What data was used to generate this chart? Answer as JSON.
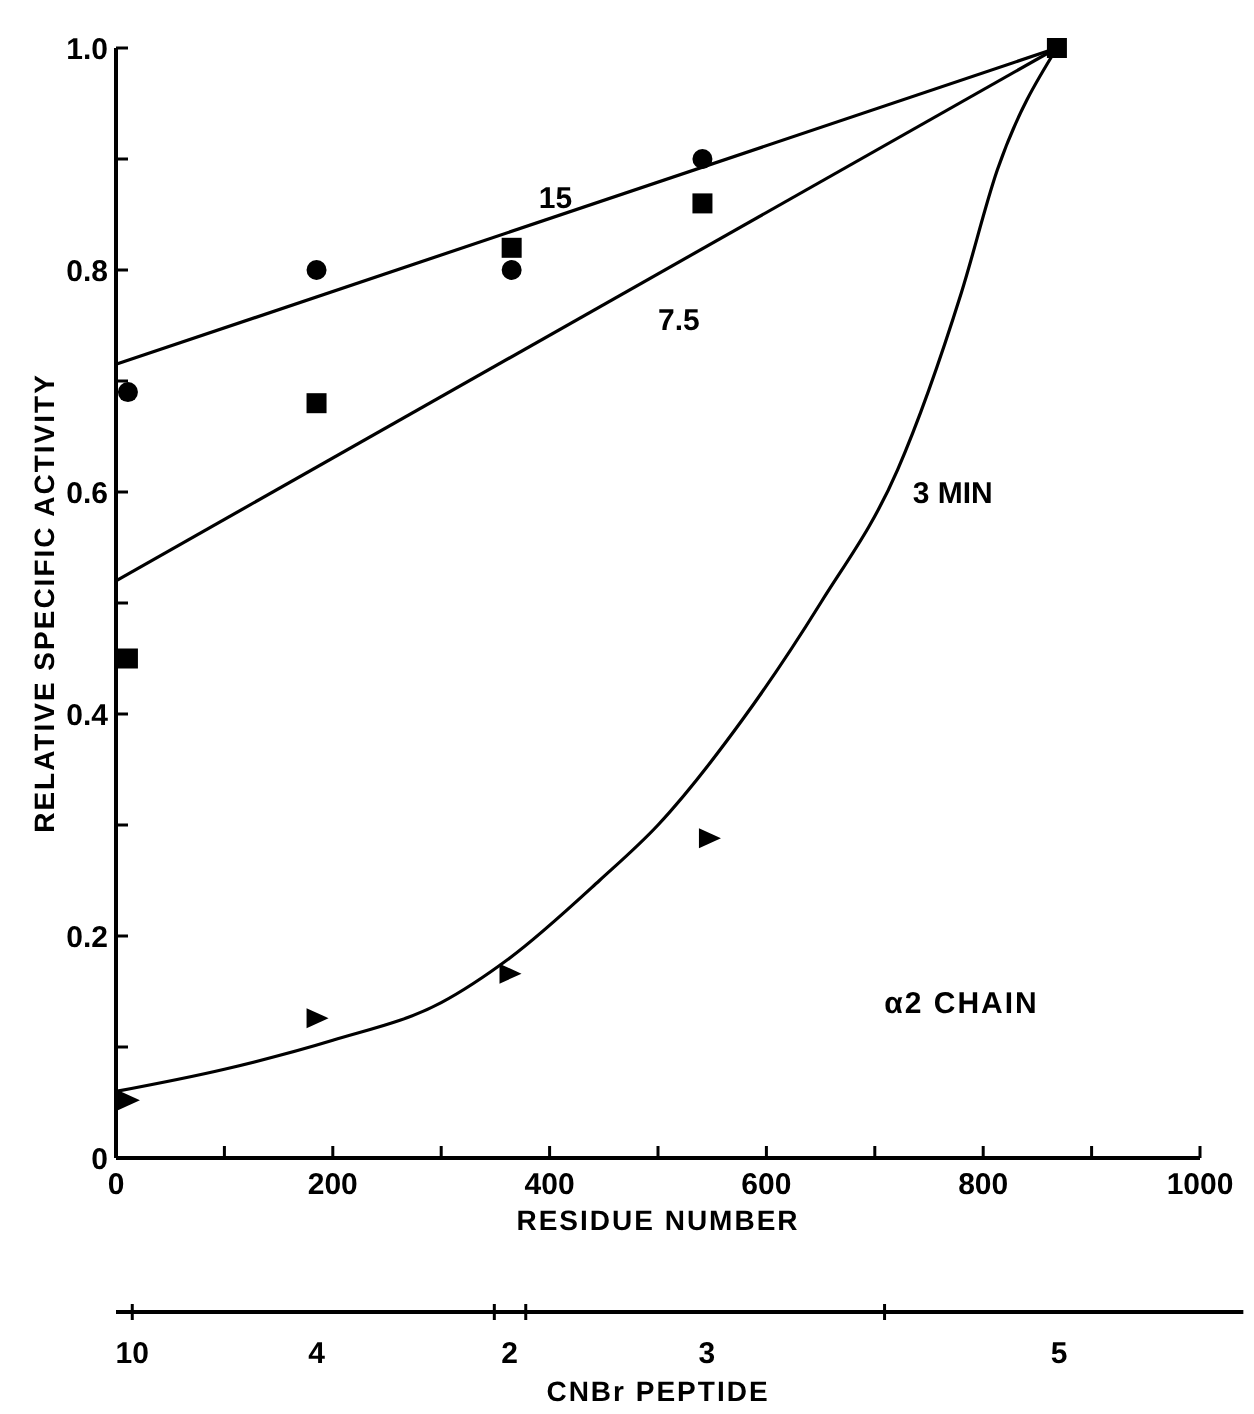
{
  "chart_data": {
    "type": "scatter",
    "xlabel": "RESIDUE NUMBER",
    "ylabel": "RELATIVE SPECIFIC ACTIVITY",
    "xlim": [
      0,
      1000
    ],
    "ylim": [
      0,
      1.0
    ],
    "xticks": [
      0,
      {
        "value": 100,
        "label": null
      },
      200,
      {
        "value": 300,
        "label": null
      },
      400,
      {
        "value": 500,
        "label": null
      },
      600,
      {
        "value": 700,
        "label": null
      },
      800,
      {
        "value": 900,
        "label": null
      },
      1000
    ],
    "yticks": [
      0,
      {
        "value": 0.1,
        "label": null
      },
      0.2,
      {
        "value": 0.3,
        "label": null
      },
      {
        "value": 0.4,
        "label": "0.4"
      },
      {
        "value": 0.5,
        "label": null
      },
      {
        "value": 0.6,
        "label": "0.6"
      },
      {
        "value": 0.7,
        "label": null
      },
      {
        "value": 0.8,
        "label": "0.8"
      },
      {
        "value": 0.9,
        "label": null
      },
      {
        "value": 1.0,
        "label": "1.0"
      }
    ],
    "grid": false,
    "series": [
      {
        "marker": "circle",
        "color": "#000000",
        "x": [
          11,
          185,
          365,
          541
        ],
        "values": [
          0.69,
          0.8,
          0.8,
          0.9
        ]
      },
      {
        "marker": "square",
        "color": "#000000",
        "x": [
          11,
          185,
          365,
          541,
          868
        ],
        "values": [
          0.45,
          0.68,
          0.82,
          0.86,
          1.0
        ]
      },
      {
        "marker": "triangle",
        "color": "#000000",
        "x": [
          11,
          185,
          363,
          547
        ],
        "values": [
          0.052,
          0.126,
          0.166,
          0.288
        ]
      },
      {
        "type": "line",
        "marker": "none",
        "line_style": "solid",
        "color": "#000000",
        "x": [
          0,
          868
        ],
        "values": [
          0.715,
          1.0
        ]
      },
      {
        "type": "line",
        "marker": "none",
        "line_style": "solid",
        "color": "#000000",
        "x": [
          0,
          868
        ],
        "values": [
          0.52,
          1.0
        ]
      },
      {
        "type": "line",
        "marker": "none",
        "line_style": "solid",
        "color": "#000000",
        "x": [
          0,
          100,
          200,
          300,
          363,
          446,
          500,
          578,
          650,
          721,
          780,
          813,
          868
        ],
        "values": [
          0.06,
          0.08,
          0.106,
          0.14,
          0.18,
          0.25,
          0.3,
          0.395,
          0.5,
          0.62,
          0.78,
          0.89,
          1.0
        ]
      }
    ],
    "annotations": [
      "15",
      "7.5",
      "3 MIN",
      "α2 CHAIN",
      "10",
      "4",
      "2",
      "3",
      "5",
      "CNBr PEPTIDE"
    ]
  }
}
